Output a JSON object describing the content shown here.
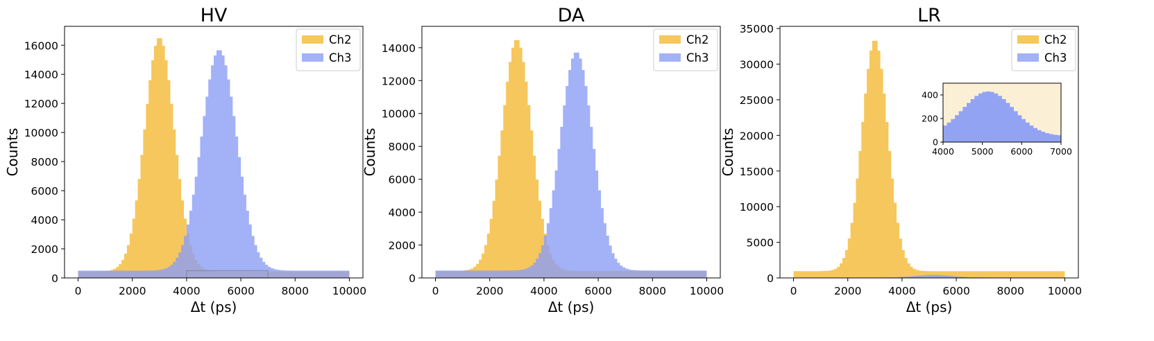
{
  "colors": {
    "ch2": "#f5c14a",
    "ch3": "#8c9ef5",
    "inset_bg": "#fbf0d5"
  },
  "chart_data": [
    {
      "type": "histogram",
      "title": "HV",
      "xlabel": "Δt (ps)",
      "ylabel": "Counts",
      "xlim": [
        -500,
        10500
      ],
      "ylim": [
        0,
        17300
      ],
      "xticks": [
        "0",
        "2000",
        "4000",
        "6000",
        "8000",
        "10000"
      ],
      "yticks": [
        "0",
        "2000",
        "4000",
        "6000",
        "8000",
        "10000",
        "12000",
        "14000",
        "16000"
      ],
      "bin_width": 100,
      "legend": "top-right",
      "series": [
        {
          "name": "Ch2",
          "color": "#f5c14a",
          "peak_center": 3000,
          "peak_sigma": 550,
          "peak_height": 16100,
          "baseline": 450
        },
        {
          "name": "Ch3",
          "color": "#8c9ef5",
          "peak_center": 5200,
          "peak_sigma": 650,
          "peak_height": 15200,
          "baseline": 500
        }
      ],
      "inset_marker": {
        "x": [
          4000,
          7000
        ],
        "y": [
          0,
          500
        ]
      }
    },
    {
      "type": "histogram",
      "title": "DA",
      "xlabel": "Δt (ps)",
      "ylabel": "Counts",
      "xlim": [
        -500,
        10500
      ],
      "ylim": [
        0,
        15300
      ],
      "xticks": [
        "0",
        "2000",
        "4000",
        "6000",
        "8000",
        "10000"
      ],
      "yticks": [
        "0",
        "2000",
        "4000",
        "6000",
        "8000",
        "10000",
        "12000",
        "14000"
      ],
      "bin_width": 100,
      "legend": "top-right",
      "series": [
        {
          "name": "Ch2",
          "color": "#f5c14a",
          "peak_center": 3000,
          "peak_sigma": 550,
          "peak_height": 14100,
          "baseline": 420
        },
        {
          "name": "Ch3",
          "color": "#8c9ef5",
          "peak_center": 5200,
          "peak_sigma": 600,
          "peak_height": 13300,
          "baseline": 450
        }
      ]
    },
    {
      "type": "histogram",
      "title": "LR",
      "xlabel": "Δt (ps)",
      "ylabel": "Counts",
      "xlim": [
        -500,
        10500
      ],
      "ylim": [
        0,
        35300
      ],
      "xticks": [
        "0",
        "2000",
        "4000",
        "6000",
        "8000",
        "10000"
      ],
      "yticks": [
        "0",
        "5000",
        "10000",
        "15000",
        "20000",
        "25000",
        "30000",
        "35000"
      ],
      "bin_width": 100,
      "legend": "top-right",
      "series": [
        {
          "name": "Ch2",
          "color": "#f5c14a",
          "peak_center": 3000,
          "peak_sigma": 480,
          "peak_height": 32500,
          "baseline": 950
        },
        {
          "name": "Ch3",
          "color": "#8c9ef5",
          "peak_center": 5150,
          "peak_sigma": 650,
          "peak_height": 380,
          "baseline": 50
        }
      ],
      "inset": {
        "xlim": [
          4000,
          7000
        ],
        "ylim": [
          0,
          500
        ],
        "xticks": [
          "4000",
          "5000",
          "6000",
          "7000"
        ],
        "yticks": [
          "0",
          "200",
          "400"
        ]
      }
    }
  ]
}
